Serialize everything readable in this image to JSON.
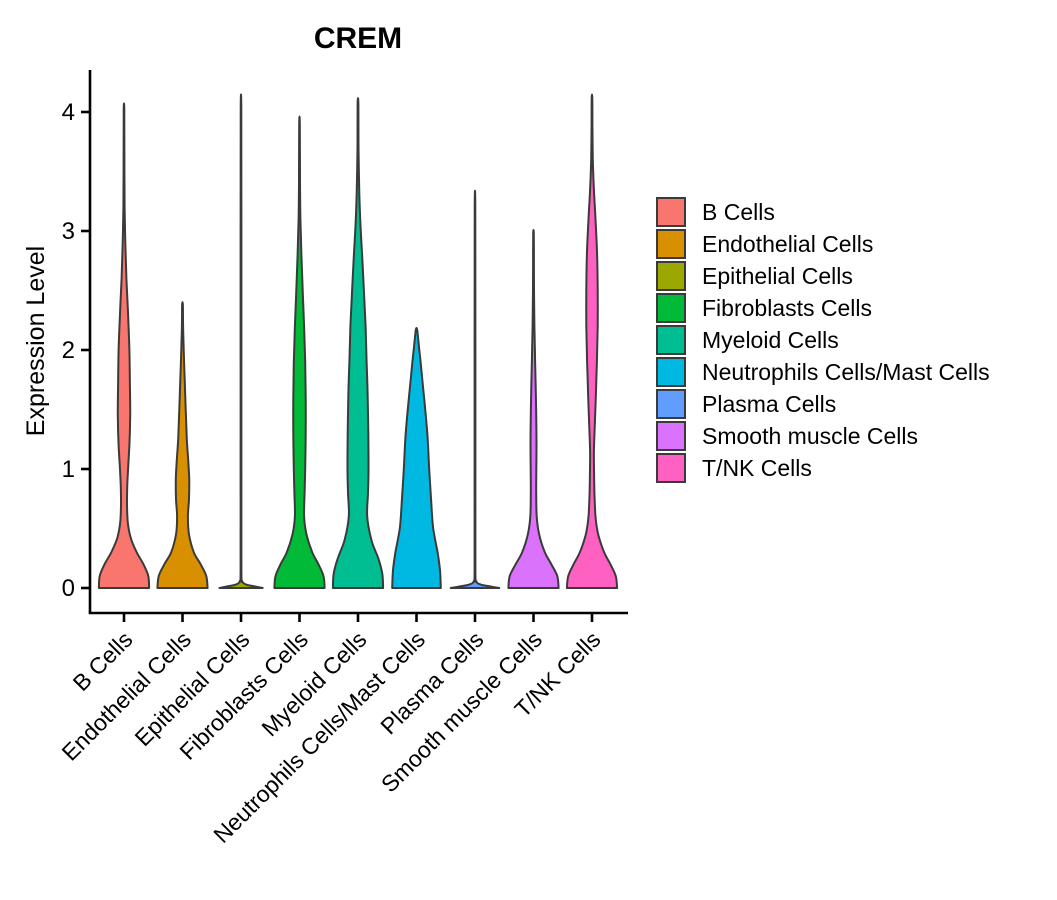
{
  "chart_data": {
    "type": "violin",
    "title": "CREM",
    "ylabel": "Expression Level",
    "xlabel": "",
    "y_ticks": [
      0,
      1,
      2,
      3,
      4
    ],
    "ylim": [
      0,
      4.3
    ],
    "grid": "off",
    "legend_position": "right",
    "axis_color": "#000000",
    "violin_outline_color": "#3A3A3A",
    "x_categories": [
      "B Cells",
      "Endothelial Cells",
      "Epithelial Cells",
      "Fibroblasts Cells",
      "Myeloid Cells",
      "Neutrophils Cells/Mast Cells",
      "Plasma Cells",
      "Smooth muscle Cells",
      "T/NK Cells"
    ],
    "series": [
      {
        "name": "B Cells",
        "color": "#F8766D",
        "max_expression": 4.02,
        "profile": [
          [
            0,
            0.93
          ],
          [
            0.1,
            0.9
          ],
          [
            0.2,
            0.72
          ],
          [
            0.3,
            0.47
          ],
          [
            0.42,
            0.25
          ],
          [
            0.55,
            0.14
          ],
          [
            0.7,
            0.11
          ],
          [
            0.85,
            0.12
          ],
          [
            1.0,
            0.15
          ],
          [
            1.2,
            0.2
          ],
          [
            1.45,
            0.23
          ],
          [
            1.7,
            0.22
          ],
          [
            2.0,
            0.2
          ],
          [
            2.3,
            0.15
          ],
          [
            2.6,
            0.09
          ],
          [
            2.9,
            0.05
          ],
          [
            3.2,
            0.022
          ],
          [
            3.6,
            0.014
          ],
          [
            4.02,
            0.012
          ]
        ]
      },
      {
        "name": "Endothelial Cells",
        "color": "#D89000",
        "max_expression": 2.38,
        "profile": [
          [
            0,
            0.93
          ],
          [
            0.1,
            0.88
          ],
          [
            0.2,
            0.67
          ],
          [
            0.3,
            0.42
          ],
          [
            0.45,
            0.24
          ],
          [
            0.6,
            0.2
          ],
          [
            0.75,
            0.24
          ],
          [
            0.9,
            0.25
          ],
          [
            1.05,
            0.22
          ],
          [
            1.25,
            0.16
          ],
          [
            1.5,
            0.12
          ],
          [
            1.75,
            0.08
          ],
          [
            2.0,
            0.045
          ],
          [
            2.2,
            0.022
          ],
          [
            2.38,
            0.013
          ]
        ]
      },
      {
        "name": "Epithelial Cells",
        "color": "#9CA700",
        "max_expression": 4.02,
        "profile": [
          [
            0,
            0.8
          ],
          [
            0.012,
            0.55
          ],
          [
            0.03,
            0.18
          ],
          [
            0.06,
            0.04
          ],
          [
            0.15,
            0.016
          ],
          [
            1.0,
            0.013
          ],
          [
            2.0,
            0.013
          ],
          [
            3.0,
            0.013
          ],
          [
            4.02,
            0.012
          ]
        ]
      },
      {
        "name": "Fibroblasts Cells",
        "color": "#00BA38",
        "max_expression": 3.9,
        "profile": [
          [
            0,
            0.93
          ],
          [
            0.1,
            0.89
          ],
          [
            0.2,
            0.7
          ],
          [
            0.3,
            0.47
          ],
          [
            0.45,
            0.26
          ],
          [
            0.6,
            0.17
          ],
          [
            0.8,
            0.19
          ],
          [
            1.0,
            0.21
          ],
          [
            1.3,
            0.23
          ],
          [
            1.6,
            0.23
          ],
          [
            1.9,
            0.21
          ],
          [
            2.2,
            0.17
          ],
          [
            2.5,
            0.12
          ],
          [
            2.8,
            0.07
          ],
          [
            3.1,
            0.035
          ],
          [
            3.4,
            0.018
          ],
          [
            3.9,
            0.012
          ]
        ]
      },
      {
        "name": "Myeloid Cells",
        "color": "#00BD92",
        "max_expression": 4.07,
        "profile": [
          [
            0,
            0.93
          ],
          [
            0.12,
            0.9
          ],
          [
            0.25,
            0.75
          ],
          [
            0.4,
            0.5
          ],
          [
            0.6,
            0.34
          ],
          [
            0.8,
            0.37
          ],
          [
            1.0,
            0.39
          ],
          [
            1.3,
            0.38
          ],
          [
            1.6,
            0.36
          ],
          [
            1.9,
            0.32
          ],
          [
            2.2,
            0.28
          ],
          [
            2.5,
            0.22
          ],
          [
            2.8,
            0.15
          ],
          [
            3.1,
            0.08
          ],
          [
            3.4,
            0.04
          ],
          [
            3.7,
            0.02
          ],
          [
            4.07,
            0.013
          ]
        ]
      },
      {
        "name": "Neutrophils Cells/Mast Cells",
        "color": "#00B9E3",
        "max_expression": 2.17,
        "profile": [
          [
            0,
            0.9
          ],
          [
            0.15,
            0.87
          ],
          [
            0.3,
            0.78
          ],
          [
            0.5,
            0.62
          ],
          [
            0.7,
            0.55
          ],
          [
            1.0,
            0.47
          ],
          [
            1.3,
            0.4
          ],
          [
            1.6,
            0.28
          ],
          [
            1.9,
            0.15
          ],
          [
            2.05,
            0.08
          ],
          [
            2.17,
            0.025
          ]
        ]
      },
      {
        "name": "Plasma Cells",
        "color": "#619CFF",
        "max_expression": 3.19,
        "profile": [
          [
            0,
            0.9
          ],
          [
            0.012,
            0.6
          ],
          [
            0.03,
            0.2
          ],
          [
            0.06,
            0.04
          ],
          [
            0.15,
            0.016
          ],
          [
            1.0,
            0.013
          ],
          [
            2.0,
            0.013
          ],
          [
            3.19,
            0.012
          ]
        ]
      },
      {
        "name": "Smooth muscle Cells",
        "color": "#DB72FB",
        "max_expression": 2.98,
        "profile": [
          [
            0,
            0.93
          ],
          [
            0.1,
            0.88
          ],
          [
            0.2,
            0.66
          ],
          [
            0.3,
            0.42
          ],
          [
            0.45,
            0.21
          ],
          [
            0.6,
            0.12
          ],
          [
            0.8,
            0.1
          ],
          [
            1.0,
            0.105
          ],
          [
            1.2,
            0.11
          ],
          [
            1.4,
            0.105
          ],
          [
            1.6,
            0.09
          ],
          [
            1.8,
            0.07
          ],
          [
            2.0,
            0.05
          ],
          [
            2.2,
            0.035
          ],
          [
            2.5,
            0.02
          ],
          [
            2.75,
            0.015
          ],
          [
            2.98,
            0.012
          ]
        ]
      },
      {
        "name": "T/NK Cells",
        "color": "#FF61C3",
        "max_expression": 4.12,
        "profile": [
          [
            0,
            0.93
          ],
          [
            0.1,
            0.88
          ],
          [
            0.2,
            0.68
          ],
          [
            0.3,
            0.45
          ],
          [
            0.45,
            0.23
          ],
          [
            0.6,
            0.13
          ],
          [
            0.8,
            0.09
          ],
          [
            1.0,
            0.075
          ],
          [
            1.15,
            0.07
          ],
          [
            1.35,
            0.1
          ],
          [
            1.6,
            0.14
          ],
          [
            1.9,
            0.18
          ],
          [
            2.2,
            0.21
          ],
          [
            2.5,
            0.21
          ],
          [
            2.8,
            0.19
          ],
          [
            3.1,
            0.13
          ],
          [
            3.35,
            0.07
          ],
          [
            3.6,
            0.03
          ],
          [
            3.9,
            0.016
          ],
          [
            4.12,
            0.012
          ]
        ]
      }
    ]
  },
  "legend": {
    "title": ""
  }
}
